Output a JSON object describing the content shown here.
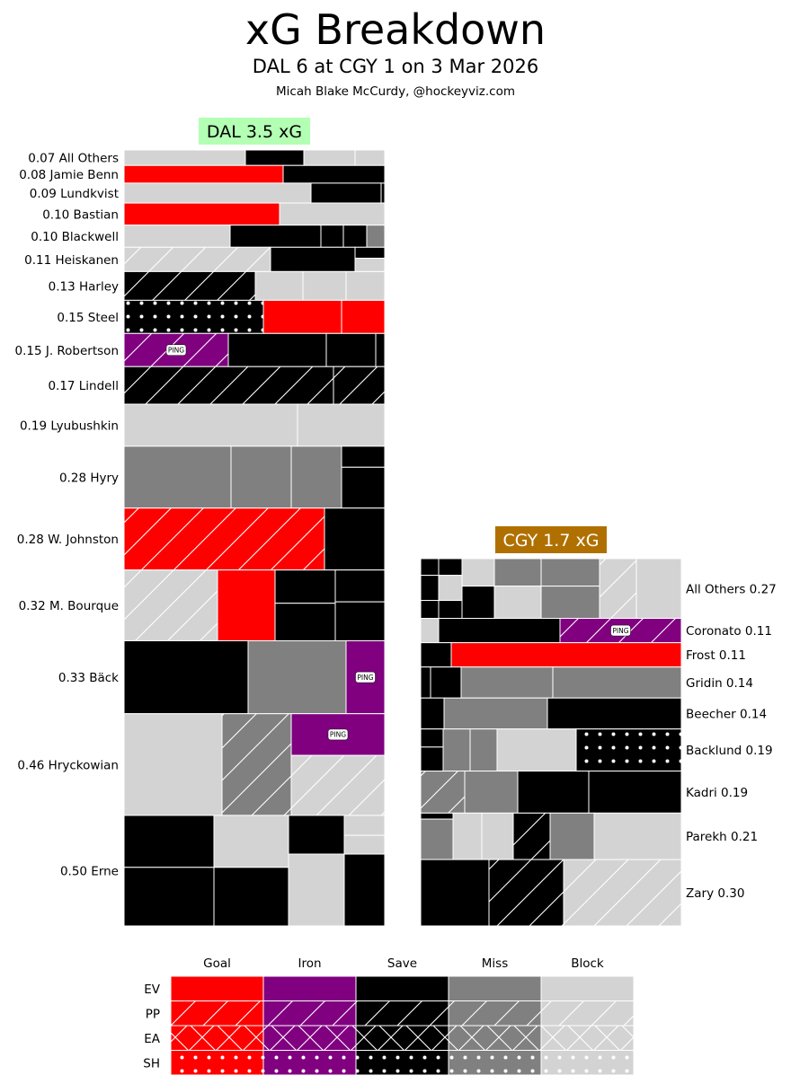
{
  "title": "xG Breakdown",
  "subtitle": "DAL 6 at CGY 1 on 3 Mar 2026",
  "credit": "Micah Blake McCurdy, @hockeyviz.com",
  "colors": {
    "Goal": "#ff0000",
    "Iron": "#800080",
    "Save": "#000000",
    "Miss": "#808080",
    "Block": "#d3d3d3",
    "dal_badge": "#b3ffb3",
    "cgy_badge": "#b07000"
  },
  "chart_data": {
    "type": "treemap",
    "teams": [
      {
        "team": "DAL",
        "label": "DAL 3.5 xG",
        "xg": 3.5,
        "label_side": "left",
        "players": [
          {
            "name": "All Others",
            "xg": 0.07,
            "label": "0.07 All Others",
            "shots": [
              {
                "r": "Block",
                "s": "EV",
                "w": 135
              },
              {
                "r": "Save",
                "s": "EV",
                "w": 65
              },
              {
                "r": "Block",
                "s": "EV",
                "w": 57
              },
              {
                "r": "Block",
                "s": "EV",
                "w": 33
              }
            ]
          },
          {
            "name": "Jamie Benn",
            "xg": 0.08,
            "label": "0.08 Jamie Benn",
            "shots": [
              {
                "r": "Goal",
                "s": "EV",
                "w": 177
              },
              {
                "r": "Save",
                "s": "EV",
                "w": 113
              }
            ]
          },
          {
            "name": "Lundkvist",
            "xg": 0.09,
            "label": "0.09 Lundkvist",
            "shots": [
              {
                "r": "Block",
                "s": "EV",
                "w": 208
              },
              {
                "r": "Save",
                "s": "EV",
                "w": 78
              },
              {
                "r": "Save",
                "s": "EV",
                "w": 4
              }
            ]
          },
          {
            "name": "Bastian",
            "xg": 0.1,
            "label": "0.10 Bastian",
            "shots": [
              {
                "r": "Goal",
                "s": "EV",
                "w": 173
              },
              {
                "r": "Block",
                "s": "EV",
                "w": 117
              }
            ]
          },
          {
            "name": "Blackwell",
            "xg": 0.1,
            "label": "0.10 Blackwell",
            "shots": [
              {
                "r": "Block",
                "s": "EV",
                "w": 118
              },
              {
                "r": "Save",
                "s": "EV",
                "w": 101
              },
              {
                "r": "Save",
                "s": "EV",
                "w": 25
              },
              {
                "r": "Save",
                "s": "EV",
                "w": 26
              },
              {
                "r": "Miss",
                "s": "EV",
                "w": 20
              }
            ]
          },
          {
            "name": "Heiskanen",
            "xg": 0.11,
            "label": "0.11 Heiskanen",
            "shots": [
              {
                "r": "Block",
                "s": "PP",
                "w": 163
              },
              {
                "r": "Save",
                "s": "EV",
                "w": 94
              },
              {
                "r": "Save",
                "s": "EV",
                "w": 33,
                "f": 0.45
              },
              {
                "r": "Block",
                "s": "EV",
                "w": 33,
                "f": 0.55
              }
            ]
          },
          {
            "name": "Harley",
            "xg": 0.13,
            "label": "0.13 Harley",
            "shots": [
              {
                "r": "Save",
                "s": "PP",
                "w": 146
              },
              {
                "r": "Block",
                "s": "EV",
                "w": 53
              },
              {
                "r": "Block",
                "s": "EV",
                "w": 48
              },
              {
                "r": "Block",
                "s": "EV",
                "w": 43
              }
            ]
          },
          {
            "name": "Steel",
            "xg": 0.15,
            "label": "0.15 Steel",
            "shots": [
              {
                "r": "Save",
                "s": "SH",
                "w": 155
              },
              {
                "r": "Goal",
                "s": "EV",
                "w": 87
              },
              {
                "r": "Goal",
                "s": "EV",
                "w": 48
              }
            ]
          },
          {
            "name": "J. Robertson",
            "xg": 0.15,
            "label": "0.15 J. Robertson",
            "shots": [
              {
                "r": "Iron",
                "s": "PP",
                "w": 116,
                "ping": true
              },
              {
                "r": "Save",
                "s": "EV",
                "w": 109
              },
              {
                "r": "Save",
                "s": "EV",
                "w": 55
              },
              {
                "r": "Save",
                "s": "EV",
                "w": 10
              }
            ]
          },
          {
            "name": "Lindell",
            "xg": 0.17,
            "label": "0.17 Lindell",
            "shots": [
              {
                "r": "Save",
                "s": "PP",
                "w": 233
              },
              {
                "r": "Save",
                "s": "PP",
                "w": 57
              }
            ]
          },
          {
            "name": "Lyubushkin",
            "xg": 0.19,
            "label": "0.19 Lyubushkin",
            "shots": [
              {
                "r": "Block",
                "s": "EV",
                "w": 193
              },
              {
                "r": "Block",
                "s": "EV",
                "w": 97
              }
            ]
          },
          {
            "name": "Hyry",
            "xg": 0.28,
            "label": "0.28 Hyry",
            "shots": [
              {
                "r": "Miss",
                "s": "EV",
                "w": 119
              },
              {
                "r": "Miss",
                "s": "EV",
                "w": 67
              },
              {
                "r": "Miss",
                "s": "EV",
                "w": 56
              },
              {
                "r": "Save",
                "s": "EV",
                "w": 48,
                "f": 0.34
              },
              {
                "r": "Save",
                "s": "EV",
                "w": 48,
                "f": 0.66
              }
            ]
          },
          {
            "name": "W. Johnston",
            "xg": 0.28,
            "label": "0.28 W. Johnston",
            "shots": [
              {
                "r": "Goal",
                "s": "PP",
                "w": 223
              },
              {
                "r": "Save",
                "s": "EV",
                "w": 67
              }
            ]
          },
          {
            "name": "M. Bourque",
            "xg": 0.32,
            "label": "0.32 M. Bourque",
            "shots": [
              {
                "r": "Block",
                "s": "PP",
                "w": 104
              },
              {
                "r": "Goal",
                "s": "EV",
                "w": 64
              },
              {
                "r": "Save",
                "s": "EV",
                "w": 67,
                "f": 0.47
              },
              {
                "r": "Save",
                "s": "EV",
                "w": 67,
                "f": 0.53
              },
              {
                "r": "Save",
                "s": "EV",
                "w": 55,
                "f": 0.45
              },
              {
                "r": "Save",
                "s": "EV",
                "w": 55,
                "f": 0.55
              }
            ]
          },
          {
            "name": "Bäck",
            "xg": 0.33,
            "label": "0.33 Bäck",
            "shots": [
              {
                "r": "Save",
                "s": "EV",
                "w": 138
              },
              {
                "r": "Miss",
                "s": "EV",
                "w": 109
              },
              {
                "r": "Iron",
                "s": "EV",
                "w": 43,
                "ping": true
              }
            ]
          },
          {
            "name": "Hryckowian",
            "xg": 0.46,
            "label": "0.46 Hryckowian",
            "shots": [
              {
                "r": "Block",
                "s": "EV",
                "w": 109
              },
              {
                "r": "Miss",
                "s": "PP",
                "w": 77
              },
              {
                "r": "Iron",
                "s": "EV",
                "w": 104,
                "f": 0.41,
                "ping": true
              },
              {
                "r": "Block",
                "s": "PP",
                "w": 104,
                "f": 0.59
              }
            ]
          },
          {
            "name": "Erne",
            "xg": 0.5,
            "label": "0.50 Erne",
            "shots": [
              {
                "r": "Save",
                "s": "EV",
                "w": 100,
                "f": 0.47
              },
              {
                "r": "Save",
                "s": "EV",
                "w": 100,
                "f": 0.53
              },
              {
                "r": "Block",
                "s": "EV",
                "w": 83,
                "f": 0.47
              },
              {
                "r": "Save",
                "s": "EV",
                "w": 83,
                "f": 0.53
              },
              {
                "r": "Save",
                "s": "EV",
                "w": 62,
                "f": 0.35
              },
              {
                "r": "Block",
                "s": "EV",
                "w": 62,
                "f": 0.65
              },
              {
                "r": "Block",
                "s": "EV",
                "w": 45,
                "f": 0.18
              },
              {
                "r": "Block",
                "s": "EV",
                "w": 45,
                "f": 0.17
              },
              {
                "r": "Save",
                "s": "EV",
                "w": 45,
                "f": 0.65
              }
            ]
          }
        ]
      },
      {
        "team": "CGY",
        "label": "CGY 1.7 xG",
        "xg": 1.7,
        "label_side": "right",
        "players": [
          {
            "name": "All Others",
            "xg": 0.27,
            "label": "All Others 0.27",
            "shots": [
              {
                "r": "Save",
                "s": "EV",
                "w": 20,
                "f": 0.28
              },
              {
                "r": "Save",
                "s": "EV",
                "w": 20,
                "f": 0.42
              },
              {
                "r": "Save",
                "s": "EV",
                "w": 20,
                "f": 0.3
              },
              {
                "r": "Save",
                "s": "EV",
                "w": 26,
                "f": 0.28
              },
              {
                "r": "Block",
                "s": "EV",
                "w": 26,
                "f": 0.42
              },
              {
                "r": "Save",
                "s": "EV",
                "w": 26,
                "f": 0.3
              },
              {
                "r": "Block",
                "s": "EV",
                "w": 36,
                "f": 0.46
              },
              {
                "r": "Save",
                "s": "EV",
                "w": 36,
                "f": 0.54
              },
              {
                "r": "Miss",
                "s": "EV",
                "w": 52,
                "f": 0.46
              },
              {
                "r": "Block",
                "s": "EV",
                "w": 52,
                "f": 0.54
              },
              {
                "r": "Miss",
                "s": "EV",
                "w": 65,
                "f": 0.46
              },
              {
                "r": "Miss",
                "s": "EV",
                "w": 65,
                "f": 0.54
              },
              {
                "r": "Block",
                "s": "PP",
                "w": 41
              },
              {
                "r": "Block",
                "s": "EV",
                "w": 50
              }
            ]
          },
          {
            "name": "Coronato",
            "xg": 0.11,
            "label": "Coronato 0.11",
            "shots": [
              {
                "r": "Block",
                "s": "EV",
                "w": 20
              },
              {
                "r": "Save",
                "s": "EV",
                "w": 135
              },
              {
                "r": "Iron",
                "s": "PP",
                "w": 135,
                "ping": true
              }
            ]
          },
          {
            "name": "Frost",
            "xg": 0.11,
            "label": "Frost 0.11",
            "shots": [
              {
                "r": "Save",
                "s": "EV",
                "w": 34
              },
              {
                "r": "Goal",
                "s": "EV",
                "w": 256
              }
            ]
          },
          {
            "name": "Gridin",
            "xg": 0.14,
            "label": "Gridin 0.14",
            "shots": [
              {
                "r": "Save",
                "s": "EV",
                "w": 11
              },
              {
                "r": "Save",
                "s": "EV",
                "w": 34
              },
              {
                "r": "Miss",
                "s": "EV",
                "w": 102
              },
              {
                "r": "Miss",
                "s": "EV",
                "w": 143
              }
            ]
          },
          {
            "name": "Beecher",
            "xg": 0.14,
            "label": "Beecher 0.14",
            "shots": [
              {
                "r": "Save",
                "s": "EV",
                "w": 26
              },
              {
                "r": "Miss",
                "s": "EV",
                "w": 115
              },
              {
                "r": "Save",
                "s": "EV",
                "w": 149
              }
            ]
          },
          {
            "name": "Backlund",
            "xg": 0.19,
            "label": "Backlund 0.19",
            "shots": [
              {
                "r": "Save",
                "s": "EV",
                "w": 25,
                "f": 0.43
              },
              {
                "r": "Save",
                "s": "EV",
                "w": 25,
                "f": 0.57
              },
              {
                "r": "Miss",
                "s": "EV",
                "w": 30
              },
              {
                "r": "Miss",
                "s": "EV",
                "w": 30
              },
              {
                "r": "Block",
                "s": "EV",
                "w": 88
              },
              {
                "r": "Save",
                "s": "SH",
                "w": 117
              }
            ]
          },
          {
            "name": "Kadri",
            "xg": 0.19,
            "label": "Kadri 0.19",
            "shots": [
              {
                "r": "Miss",
                "s": "PP",
                "w": 49
              },
              {
                "r": "Miss",
                "s": "EV",
                "w": 59
              },
              {
                "r": "Save",
                "s": "EV",
                "w": 79
              },
              {
                "r": "Save",
                "s": "EV",
                "w": 103
              }
            ]
          },
          {
            "name": "Parekh",
            "xg": 0.21,
            "label": "Parekh 0.21",
            "shots": [
              {
                "r": "Save",
                "s": "EV",
                "w": 36,
                "f": 0.13
              },
              {
                "r": "Miss",
                "s": "EV",
                "w": 36,
                "f": 0.87
              },
              {
                "r": "Block",
                "s": "EV",
                "w": 32
              },
              {
                "r": "Block",
                "s": "EV",
                "w": 35
              },
              {
                "r": "Save",
                "s": "PP",
                "w": 41
              },
              {
                "r": "Miss",
                "s": "EV",
                "w": 49
              },
              {
                "r": "Block",
                "s": "EV",
                "w": 97
              }
            ]
          },
          {
            "name": "Zary",
            "xg": 0.3,
            "label": "Zary 0.30",
            "shots": [
              {
                "r": "Save",
                "s": "EV",
                "w": 76
              },
              {
                "r": "Save",
                "s": "PP",
                "w": 83
              },
              {
                "r": "Block",
                "s": "PP",
                "w": 131
              }
            ]
          }
        ]
      }
    ],
    "legend": {
      "results": [
        "Goal",
        "Iron",
        "Save",
        "Miss",
        "Block"
      ],
      "situations": [
        "EV",
        "PP",
        "EA",
        "SH"
      ]
    },
    "ping_label": "PING"
  }
}
